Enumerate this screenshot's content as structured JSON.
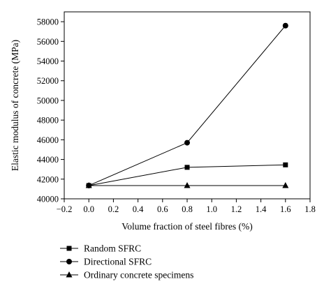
{
  "chart_data": {
    "type": "line",
    "xlabel": "Volume fraction of steel fibres (%)",
    "ylabel": "Elastic modulus of concrete (MPa)",
    "xlim": [
      -0.2,
      1.8
    ],
    "ylim": [
      40000,
      59000
    ],
    "x_ticks": [
      -0.2,
      0.0,
      0.2,
      0.4,
      0.6,
      0.8,
      1.0,
      1.2,
      1.4,
      1.6,
      1.8
    ],
    "x_tick_labels": [
      "−0.2",
      "0.0",
      "0.2",
      "0.4",
      "0.6",
      "0.8",
      "1.0",
      "1.2",
      "1.4",
      "1.6",
      "1.8"
    ],
    "y_ticks": [
      40000,
      42000,
      44000,
      46000,
      48000,
      50000,
      52000,
      54000,
      56000,
      58000
    ],
    "y_tick_labels": [
      "40000",
      "42000",
      "44000",
      "46000",
      "48000",
      "50000",
      "52000",
      "54000",
      "56000",
      "58000"
    ],
    "x": [
      0.0,
      0.8,
      1.6
    ],
    "series": [
      {
        "name": "Random SFRC",
        "marker": "square",
        "values": [
          41350,
          43200,
          43450
        ]
      },
      {
        "name": "Directional SFRC",
        "marker": "circle",
        "values": [
          41350,
          45700,
          57600
        ]
      },
      {
        "name": "Ordinary concrete specimens",
        "marker": "triangle",
        "values": [
          41350,
          41350,
          41350
        ]
      }
    ],
    "legend_placement": "below",
    "grid": false,
    "color": "#000000"
  }
}
